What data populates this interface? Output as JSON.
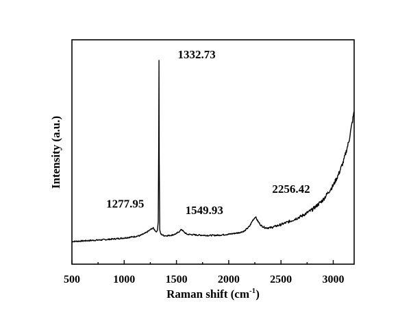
{
  "chart_data": {
    "type": "line",
    "title": "",
    "xlabel": "Raman shift (cm",
    "xlabel_sup": "-1",
    "xlabel_close": ")",
    "ylabel": "Intensity (a.u.)",
    "xlim": [
      500,
      3200
    ],
    "ylim": [
      0,
      100
    ],
    "xticks": [
      500,
      1000,
      1500,
      2000,
      2500,
      3000
    ],
    "yticks_shown": false,
    "grid": false,
    "legend": "none",
    "line_color": "#000000",
    "series": [
      {
        "x": [
          500,
          600,
          700,
          800,
          900,
          1000,
          1100,
          1150,
          1200,
          1240,
          1265,
          1278,
          1290,
          1305,
          1318,
          1326,
          1330,
          1332.73,
          1335,
          1340,
          1350,
          1380,
          1420,
          1460,
          1500,
          1530,
          1549.93,
          1570,
          1600,
          1700,
          1800,
          1900,
          2000,
          2100,
          2150,
          2200,
          2230,
          2256.42,
          2280,
          2310,
          2350,
          2400,
          2500,
          2600,
          2700,
          2800,
          2900,
          3000,
          3050,
          3100,
          3150,
          3200
        ],
        "y": [
          0,
          0.3,
          0.6,
          0.9,
          1.3,
          1.8,
          2.5,
          3.0,
          4.2,
          5.6,
          6.6,
          6.8,
          6.0,
          5.0,
          5.6,
          10,
          50,
          92,
          45,
          6,
          3.8,
          3.0,
          3.0,
          3.3,
          4.0,
          5.2,
          6.2,
          4.9,
          3.7,
          3.3,
          3.1,
          3.2,
          3.7,
          4.5,
          5.3,
          7.8,
          10.8,
          12.6,
          10.2,
          8.1,
          7.0,
          7.0,
          8.6,
          10.6,
          13.0,
          16.2,
          21.0,
          28.5,
          34,
          41,
          51,
          66
        ]
      }
    ],
    "annotations": [
      {
        "text": "1332.73",
        "x": 1332.73,
        "y": 92
      },
      {
        "text": "1277.95",
        "x": 1277.95,
        "y": 6.8
      },
      {
        "text": "1549.93",
        "x": 1549.93,
        "y": 6.2
      },
      {
        "text": "2256.42",
        "x": 2256.42,
        "y": 12.6
      }
    ]
  }
}
